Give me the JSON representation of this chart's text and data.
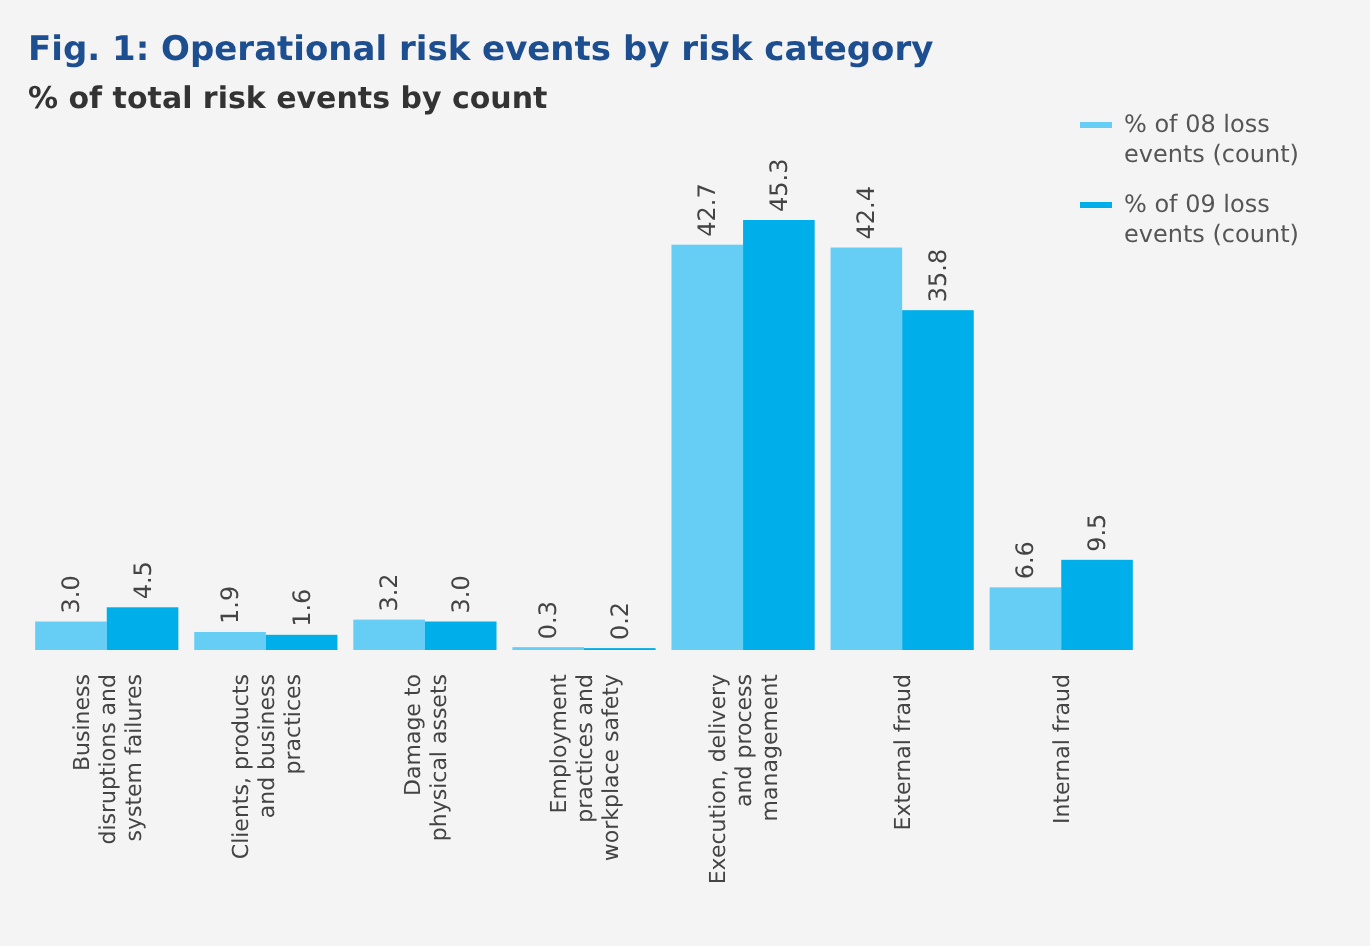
{
  "chart_data": {
    "type": "bar",
    "title": "Fig. 1: Operational risk events by risk category",
    "subtitle": "% of total risk events by count",
    "categories": [
      "Business disruptions and system failures",
      "Clients, products and business practices",
      "Damage to physical assets",
      "Employment practices and workplace safety",
      "Execution, delivery and process management",
      "External fraud",
      "Internal fraud"
    ],
    "series": [
      {
        "name": "% of 08 loss events (count)",
        "color": "#66cdf5",
        "values": [
          3.0,
          1.9,
          3.2,
          0.3,
          42.7,
          42.4,
          6.6
        ],
        "value_labels": [
          "3.0",
          "1.9",
          "3.2",
          "0.3",
          "42.7",
          "42.4",
          "6.6"
        ]
      },
      {
        "name": "% of 09 loss events (count)",
        "color": "#00aeea",
        "values": [
          4.5,
          1.6,
          3.0,
          0.2,
          45.3,
          35.8,
          9.5
        ],
        "value_labels": [
          "4.5",
          "1.6",
          "3.0",
          "0.2",
          "45.3",
          "35.8",
          "9.5"
        ]
      }
    ],
    "legend": "top right"
  }
}
